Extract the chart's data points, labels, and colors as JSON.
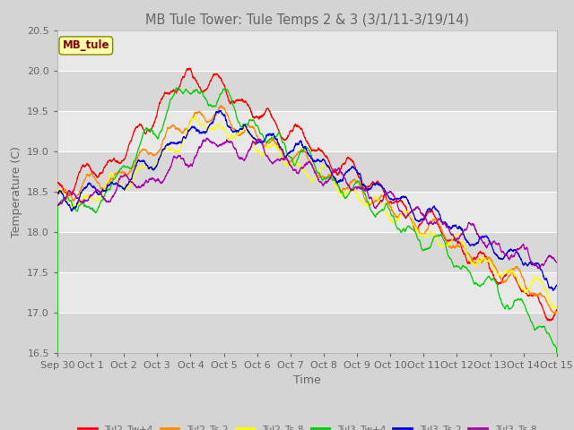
{
  "title": "MB Tule Tower: Tule Temps 2 & 3 (3/1/11-3/19/14)",
  "xlabel": "Time",
  "ylabel": "Temperature (C)",
  "ylim": [
    16.5,
    20.5
  ],
  "yticks": [
    16.5,
    17.0,
    17.5,
    18.0,
    18.5,
    19.0,
    19.5,
    20.0,
    20.5
  ],
  "xtick_labels": [
    "Sep 30",
    "Oct 1",
    "Oct 2",
    "Oct 3",
    "Oct 4",
    "Oct 5",
    "Oct 6",
    "Oct 7",
    "Oct 8",
    "Oct 9",
    "Oct 10",
    "Oct 11",
    "Oct 12",
    "Oct 13",
    "Oct 14",
    "Oct 15"
  ],
  "legend_label": "MB_tule",
  "series": [
    {
      "name": "Tul2_Tw+4",
      "color": "#ff0000"
    },
    {
      "name": "Tul2_Ts-2",
      "color": "#ff8800"
    },
    {
      "name": "Tul2_Ts-8",
      "color": "#ffff00"
    },
    {
      "name": "Tul3_Tw+4",
      "color": "#00cc00"
    },
    {
      "name": "Tul3_Ts-2",
      "color": "#0000dd"
    },
    {
      "name": "Tul3_Ts-8",
      "color": "#aa00aa"
    }
  ],
  "band_colors": [
    "#d8d8d8",
    "#e8e8e8"
  ],
  "grid_color": "#ffffff",
  "fig_bg": "#d4d4d4",
  "title_color": "#666666",
  "label_color": "#666666",
  "tick_color": "#666666",
  "title_fontsize": 10.5,
  "axis_fontsize": 9,
  "tick_fontsize": 8
}
